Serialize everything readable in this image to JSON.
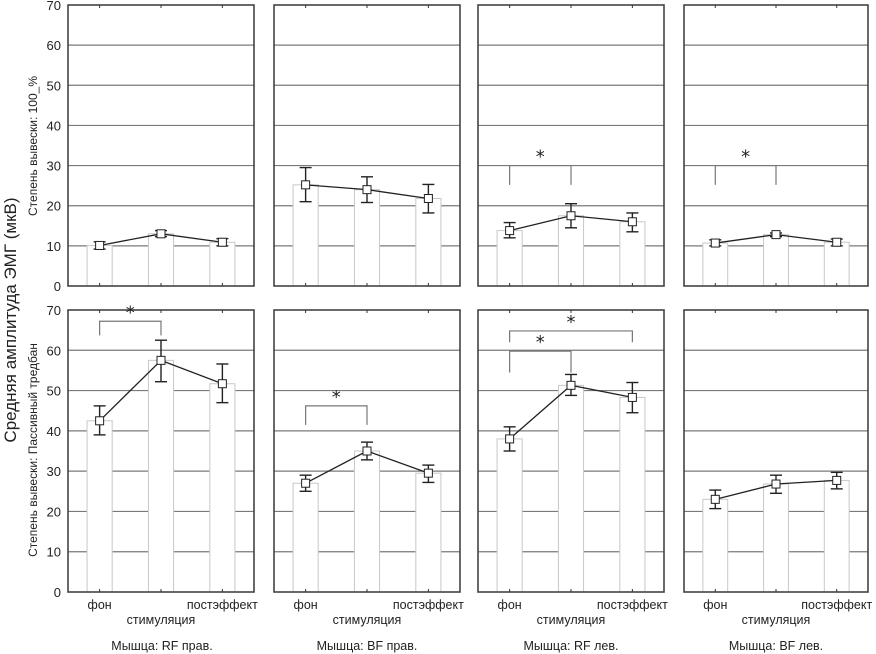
{
  "chart_data": {
    "type": "bar",
    "title": "",
    "ylabel": "Средняя амплитуда ЭМГ (мкВ)",
    "xlabel": "стимуляция",
    "categories": [
      "фон",
      "стимуляция",
      "постэффект"
    ],
    "category_tick_labels": [
      "фон",
      "",
      "постэффект"
    ],
    "ylim": [
      0,
      70
    ],
    "yticks": [
      0,
      10,
      20,
      30,
      40,
      50,
      60,
      70
    ],
    "grid": true,
    "rows": [
      {
        "label": "Степень вывески: 100_%"
      },
      {
        "label": "Степень вывески: Пассивный тредбан"
      }
    ],
    "columns": [
      {
        "label": "Мышца: RF прав."
      },
      {
        "label": "Мышца: BF прав."
      },
      {
        "label": "Мышца: RF лев."
      },
      {
        "label": "Мышца: BF лев."
      }
    ],
    "panels": [
      {
        "row": 0,
        "col": 0,
        "values": [
          10.1,
          13.0,
          10.9
        ],
        "err_low": [
          9.2,
          12.3,
          10.0
        ],
        "err_high": [
          11.0,
          13.8,
          11.8
        ],
        "significance": []
      },
      {
        "row": 0,
        "col": 1,
        "values": [
          25.2,
          24.0,
          21.8
        ],
        "err_low": [
          21.0,
          20.8,
          18.2
        ],
        "err_high": [
          29.5,
          27.2,
          25.3
        ],
        "significance": []
      },
      {
        "row": 0,
        "col": 2,
        "values": [
          13.8,
          17.5,
          16.0
        ],
        "err_low": [
          12.0,
          14.5,
          13.5
        ],
        "err_high": [
          15.8,
          20.5,
          18.2
        ],
        "significance": [
          {
            "from": 0,
            "to": 1,
            "top": 30,
            "leg": 25.2,
            "label": "*"
          }
        ]
      },
      {
        "row": 0,
        "col": 3,
        "values": [
          10.7,
          12.8,
          10.9
        ],
        "err_low": [
          10.0,
          12.3,
          10.0
        ],
        "err_high": [
          11.5,
          13.2,
          11.7
        ],
        "significance": [
          {
            "from": 0,
            "to": 1,
            "top": 30,
            "leg": 25.2,
            "label": "*"
          }
        ]
      },
      {
        "row": 1,
        "col": 0,
        "values": [
          42.5,
          57.5,
          51.7
        ],
        "err_low": [
          39.0,
          52.2,
          47.0
        ],
        "err_high": [
          46.2,
          62.5,
          56.6
        ],
        "significance": [
          {
            "from": 0,
            "to": 1,
            "top": 67.2,
            "leg": 63.7,
            "label": "*"
          }
        ]
      },
      {
        "row": 1,
        "col": 1,
        "values": [
          27.0,
          35.0,
          29.5
        ],
        "err_low": [
          25.0,
          32.8,
          27.2
        ],
        "err_high": [
          29.0,
          37.2,
          31.5
        ],
        "significance": [
          {
            "from": 0,
            "to": 1,
            "top": 46.2,
            "leg": 41.5,
            "label": "*"
          }
        ]
      },
      {
        "row": 1,
        "col": 2,
        "values": [
          38.0,
          51.3,
          48.3
        ],
        "err_low": [
          35.0,
          48.8,
          44.5
        ],
        "err_high": [
          41.0,
          54.0,
          52.0
        ],
        "significance": [
          {
            "from": 0,
            "to": 2,
            "top": 64.8,
            "leg": 62.0,
            "label": "*"
          },
          {
            "from": 0,
            "to": 1,
            "top": 59.8,
            "leg": 54.5,
            "label": "*"
          }
        ]
      },
      {
        "row": 1,
        "col": 3,
        "values": [
          23.0,
          26.8,
          27.7
        ],
        "err_low": [
          20.7,
          24.5,
          25.6
        ],
        "err_high": [
          25.3,
          29.0,
          29.7
        ],
        "significance": []
      }
    ]
  }
}
